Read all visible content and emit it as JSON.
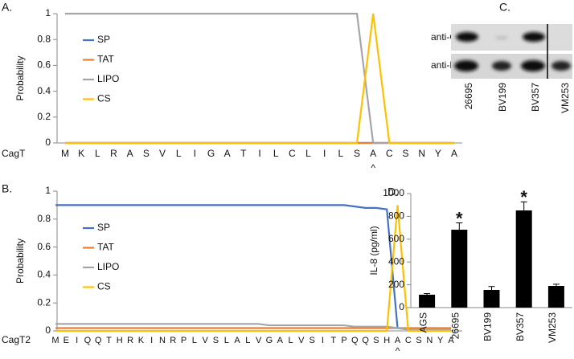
{
  "chart_data": [
    {
      "type": "line",
      "label": "A.",
      "xlabel": "CagT",
      "ylabel": "Probability",
      "categories": [
        "M",
        "K",
        "L",
        "R",
        "A",
        "S",
        "V",
        "L",
        "I",
        "G",
        "A",
        "T",
        "I",
        "L",
        "C",
        "L",
        "I",
        "L",
        "S",
        "A",
        "C",
        "S",
        "N",
        "Y",
        "A"
      ],
      "cleavage_marker": {
        "label": "^",
        "category_index": 19
      },
      "ylim": [
        0,
        1
      ],
      "yticks": [
        0,
        0.2,
        0.4,
        0.6,
        0.8,
        1
      ],
      "series": [
        {
          "name": "SP",
          "color": "#4472c4",
          "values": [
            0,
            0,
            0,
            0,
            0,
            0,
            0,
            0,
            0,
            0,
            0,
            0,
            0,
            0,
            0,
            0,
            0,
            0,
            0,
            0,
            0,
            0,
            0,
            0,
            0
          ]
        },
        {
          "name": "TAT",
          "color": "#ed7d31",
          "values": [
            0,
            0,
            0,
            0,
            0,
            0,
            0,
            0,
            0,
            0,
            0,
            0,
            0,
            0,
            0,
            0,
            0,
            0,
            0,
            0,
            0,
            0,
            0,
            0,
            0
          ]
        },
        {
          "name": "LIPO",
          "color": "#a5a5a5",
          "values": [
            1,
            1,
            1,
            1,
            1,
            1,
            1,
            1,
            1,
            1,
            1,
            1,
            1,
            1,
            1,
            1,
            1,
            1,
            1,
            0,
            0,
            0,
            0,
            0,
            0
          ]
        },
        {
          "name": "CS",
          "color": "#ffc000",
          "values": [
            0,
            0,
            0,
            0,
            0,
            0,
            0,
            0,
            0,
            0,
            0,
            0,
            0,
            0,
            0,
            0,
            0,
            0,
            0,
            1,
            0,
            0,
            0,
            0,
            0
          ]
        }
      ]
    },
    {
      "type": "line",
      "label": "B.",
      "xlabel": "CagT2",
      "ylabel": "Probability",
      "categories": [
        "M",
        "E",
        "I",
        "Q",
        "Q",
        "T",
        "H",
        "R",
        "K",
        "I",
        "N",
        "R",
        "P",
        "L",
        "V",
        "S",
        "L",
        "A",
        "L",
        "V",
        "G",
        "A",
        "L",
        "V",
        "S",
        "I",
        "T",
        "P",
        "Q",
        "Q",
        "S",
        "H",
        "A",
        "C",
        "S",
        "N",
        "Y",
        "A"
      ],
      "cleavage_marker": {
        "label": "^",
        "category_index": 32
      },
      "ylim": [
        0,
        1
      ],
      "yticks": [
        0,
        0.2,
        0.4,
        0.6,
        0.8,
        1
      ],
      "series": [
        {
          "name": "SP",
          "color": "#4472c4",
          "values": [
            0.9,
            0.9,
            0.9,
            0.9,
            0.9,
            0.9,
            0.9,
            0.9,
            0.9,
            0.9,
            0.9,
            0.9,
            0.9,
            0.9,
            0.9,
            0.9,
            0.9,
            0.9,
            0.9,
            0.9,
            0.9,
            0.9,
            0.9,
            0.9,
            0.9,
            0.9,
            0.9,
            0.9,
            0.89,
            0.88,
            0.88,
            0.87,
            0.02,
            0.01,
            0.01,
            0.01,
            0.01,
            0.01
          ]
        },
        {
          "name": "TAT",
          "color": "#ed7d31",
          "values": [
            0.02,
            0.02,
            0.02,
            0.02,
            0.02,
            0.02,
            0.02,
            0.02,
            0.02,
            0.02,
            0.02,
            0.02,
            0.02,
            0.02,
            0.02,
            0.02,
            0.02,
            0.02,
            0.02,
            0.02,
            0.02,
            0.02,
            0.02,
            0.02,
            0.02,
            0.02,
            0.02,
            0.02,
            0.02,
            0.02,
            0.02,
            0.02,
            0.02,
            0.02,
            0.02,
            0.02,
            0.02,
            0.02
          ]
        },
        {
          "name": "LIPO",
          "color": "#a5a5a5",
          "values": [
            0.05,
            0.05,
            0.05,
            0.05,
            0.05,
            0.05,
            0.05,
            0.05,
            0.05,
            0.05,
            0.05,
            0.05,
            0.05,
            0.05,
            0.05,
            0.05,
            0.05,
            0.05,
            0.05,
            0.05,
            0.04,
            0.04,
            0.04,
            0.04,
            0.04,
            0.04,
            0.04,
            0.04,
            0.03,
            0.03,
            0.03,
            0.03,
            0.02,
            0.01,
            0.01,
            0.01,
            0.01,
            0.01
          ]
        },
        {
          "name": "CS",
          "color": "#ffc000",
          "values": [
            0,
            0,
            0,
            0,
            0,
            0,
            0,
            0,
            0,
            0,
            0,
            0,
            0,
            0,
            0,
            0,
            0,
            0,
            0,
            0,
            0,
            0,
            0,
            0,
            0,
            0,
            0,
            0,
            0,
            0,
            0,
            0,
            0.9,
            0,
            0,
            0,
            0,
            0
          ]
        }
      ]
    },
    {
      "type": "bar",
      "label": "D.",
      "ylabel": "IL-8 (pg/ml)",
      "categories": [
        "AGS",
        "26695",
        "BV199",
        "BV357",
        "VM253"
      ],
      "values": [
        113,
        683,
        155,
        852,
        190
      ],
      "errors": [
        10,
        60,
        30,
        75,
        15
      ],
      "color": "#000000",
      "annotations": [
        {
          "label": "*",
          "category": "26695"
        },
        {
          "label": "*",
          "category": "BV357"
        }
      ],
      "ylim": [
        0,
        1000
      ],
      "yticks": [
        0,
        200,
        400,
        600,
        800,
        1000
      ]
    }
  ],
  "blot": {
    "label": "C.",
    "rows": [
      "anti-CagT",
      "anti-HspB"
    ],
    "lanes": [
      "26695",
      "BV199",
      "BV357",
      "VM253"
    ]
  }
}
